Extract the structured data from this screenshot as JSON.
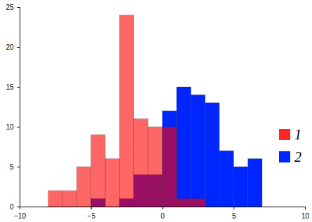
{
  "chart_data": {
    "type": "histogram",
    "bins": [
      -8,
      -7,
      -6,
      -5,
      -4,
      -3,
      -2,
      -1,
      0,
      1,
      2,
      3,
      4,
      5,
      6,
      7
    ],
    "series": [
      {
        "name": "1",
        "color": "#ff0000",
        "values": [
          2,
          2,
          5,
          9,
          6,
          24,
          11,
          10,
          10,
          1,
          1,
          0,
          0,
          0,
          0
        ]
      },
      {
        "name": "2",
        "color": "#0026ff",
        "values": [
          0,
          0,
          0,
          1,
          0,
          1,
          4,
          4,
          12,
          15,
          14,
          13,
          7,
          5,
          6
        ]
      }
    ],
    "xlim": [
      -10,
      10
    ],
    "xticks": [
      -10,
      -5,
      0,
      5,
      10
    ],
    "ylim": [
      0,
      25
    ],
    "yticks": [
      0,
      5,
      10,
      15,
      20,
      25
    ],
    "legend": "right"
  }
}
